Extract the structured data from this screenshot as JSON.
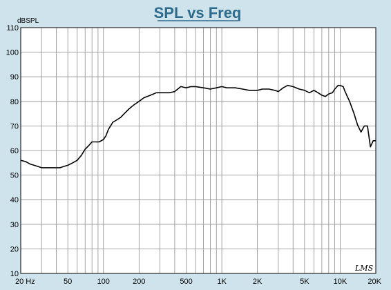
{
  "chart_data": {
    "type": "line",
    "title": "SPL vs Freq",
    "ylabel": "dBSPL",
    "xlabel": "",
    "xscale": "log",
    "xlim": [
      20,
      20000
    ],
    "ylim": [
      10,
      110
    ],
    "y_ticks": [
      10,
      20,
      30,
      40,
      50,
      60,
      70,
      80,
      90,
      100,
      110
    ],
    "x_ticks": [
      {
        "value": 20,
        "label": "20  Hz"
      },
      {
        "value": 50,
        "label": "50"
      },
      {
        "value": 100,
        "label": "100"
      },
      {
        "value": 200,
        "label": "200"
      },
      {
        "value": 500,
        "label": "500"
      },
      {
        "value": 1000,
        "label": "1K"
      },
      {
        "value": 2000,
        "label": "2K"
      },
      {
        "value": 5000,
        "label": "5K"
      },
      {
        "value": 10000,
        "label": "10K"
      },
      {
        "value": 20000,
        "label": "20K"
      }
    ],
    "grid": true,
    "brand": "LMS",
    "series": [
      {
        "color": "#000000",
        "x": [
          20,
          22,
          24,
          26,
          28,
          30,
          33,
          36,
          40,
          43,
          46,
          50,
          55,
          60,
          65,
          70,
          75,
          80,
          86,
          92,
          100,
          105,
          110,
          120,
          130,
          140,
          150,
          165,
          180,
          200,
          220,
          250,
          280,
          320,
          360,
          400,
          450,
          500,
          550,
          600,
          700,
          800,
          900,
          1000,
          1100,
          1300,
          1500,
          1700,
          2000,
          2200,
          2500,
          2800,
          3000,
          3300,
          3600,
          4000,
          4500,
          5000,
          5500,
          6000,
          6500,
          7000,
          7500,
          8000,
          8600,
          9000,
          9600,
          10000,
          10600,
          11000,
          12000,
          13000,
          14000,
          15000,
          16000,
          17000,
          18000,
          19000,
          20000
        ],
        "y": [
          56.0,
          55.5,
          54.5,
          54.0,
          53.5,
          53.0,
          53.0,
          53.0,
          53.0,
          53.0,
          53.5,
          54.0,
          55.0,
          56.0,
          58.0,
          60.5,
          62.0,
          63.5,
          63.5,
          63.5,
          64.5,
          66.0,
          68.5,
          71.5,
          72.5,
          73.5,
          75.0,
          77.0,
          78.5,
          80.0,
          81.5,
          82.5,
          83.5,
          83.5,
          83.5,
          84.0,
          86.0,
          85.5,
          86.0,
          86.0,
          85.5,
          85.0,
          85.5,
          86.0,
          85.5,
          85.5,
          85.0,
          84.5,
          84.5,
          85.0,
          85.0,
          84.5,
          84.0,
          85.5,
          86.5,
          86.0,
          85.0,
          84.5,
          83.5,
          84.5,
          83.5,
          82.5,
          82.0,
          83.0,
          83.5,
          85.0,
          86.5,
          86.5,
          86.0,
          84.0,
          80.0,
          75.5,
          70.5,
          67.5,
          70.0,
          70.0,
          61.5,
          64.0,
          64.0
        ]
      }
    ]
  }
}
